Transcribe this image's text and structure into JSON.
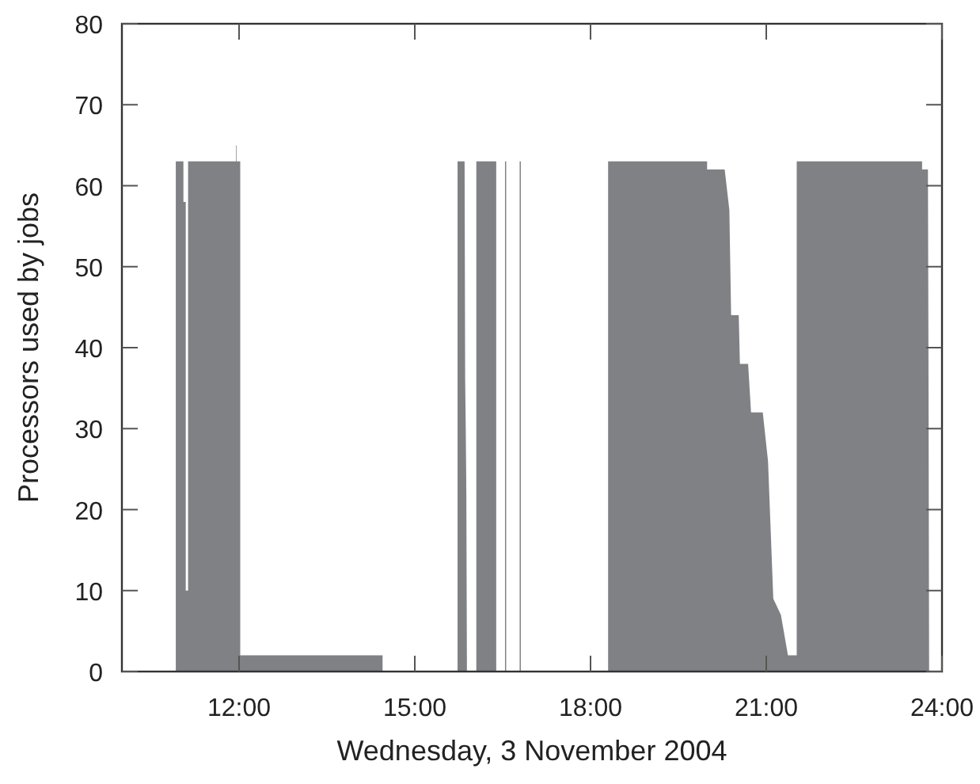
{
  "chart_data": {
    "type": "area",
    "xlabel": "Wednesday, 3 November 2004",
    "ylabel": "Processors used by jobs",
    "x": [
      10.92,
      10.92,
      11.05,
      11.05,
      11.09,
      11.09,
      11.13,
      11.13,
      11.95,
      11.95,
      11.96,
      11.96,
      12.02,
      12.02,
      14.45,
      14.45,
      15.73,
      15.73,
      15.85,
      15.86,
      15.87,
      15.88,
      15.89,
      16.05,
      16.05,
      16.39,
      16.39,
      16.54,
      16.54,
      16.56,
      16.56,
      16.79,
      16.79,
      16.81,
      16.81,
      18.3,
      18.3,
      19.99,
      19.99,
      20.29,
      20.37,
      20.4,
      20.53,
      20.55,
      20.69,
      20.74,
      20.94,
      21.03,
      21.12,
      21.25,
      21.37,
      21.52,
      21.52,
      23.66,
      23.66,
      23.76,
      23.77,
      23.78
    ],
    "series": [
      {
        "color": "#808185",
        "values": [
          0,
          63,
          63,
          58,
          58,
          10,
          10,
          63,
          63,
          65,
          65,
          63,
          63,
          2,
          2,
          0,
          0,
          63,
          63,
          36,
          30,
          22,
          0,
          0,
          63,
          63,
          0,
          0,
          63,
          63,
          0,
          0,
          63,
          63,
          0,
          0,
          63,
          63,
          62,
          62,
          57,
          44,
          44,
          38,
          38,
          32,
          32,
          26,
          9,
          7,
          2,
          2,
          63,
          63,
          62,
          62,
          36,
          0
        ]
      }
    ],
    "xlim": [
      10,
      24
    ],
    "xticks": [
      {
        "value": 12,
        "label": "12:00"
      },
      {
        "value": 15,
        "label": "15:00"
      },
      {
        "value": 18,
        "label": "18:00"
      },
      {
        "value": 21,
        "label": "21:00"
      },
      {
        "value": 24,
        "label": "24:00"
      }
    ],
    "ylim": [
      0,
      80
    ],
    "yticks": [
      0,
      10,
      20,
      30,
      40,
      50,
      60,
      70,
      80
    ],
    "grid": false
  }
}
